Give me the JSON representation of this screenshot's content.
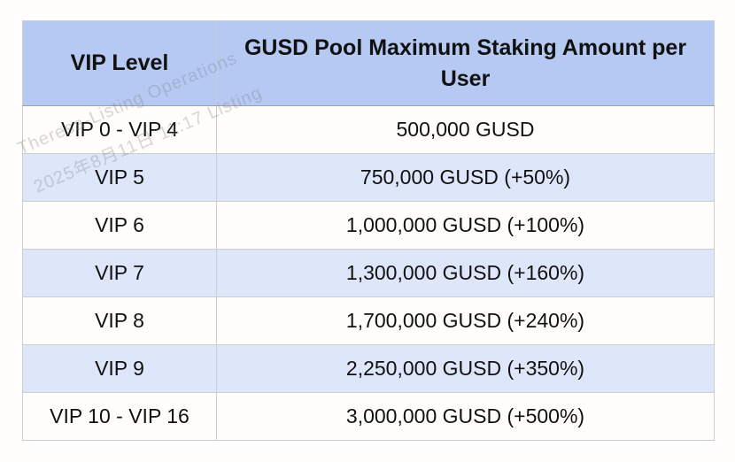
{
  "table": {
    "columns": [
      "VIP Level",
      "GUSD Pool Maximum Staking Amount per User"
    ],
    "rows": [
      {
        "level": "VIP 0 - VIP 4",
        "amount": "500,000 GUSD"
      },
      {
        "level": "VIP 5",
        "amount": "750,000 GUSD (+50%)"
      },
      {
        "level": "VIP 6",
        "amount": "1,000,000 GUSD (+100%)"
      },
      {
        "level": "VIP 7",
        "amount": "1,300,000 GUSD (+160%)"
      },
      {
        "level": "VIP 8",
        "amount": "1,700,000 GUSD (+240%)"
      },
      {
        "level": "VIP 9",
        "amount": "2,250,000 GUSD (+350%)"
      },
      {
        "level": "VIP 10 - VIP 16",
        "amount": "3,000,000 GUSD (+500%)"
      }
    ]
  },
  "watermark": {
    "line1": "Theresa-Listing Operations",
    "line2": "2025年8月11日 11:17 Listing"
  },
  "colors": {
    "page_bg": "#fffefc",
    "header_bg": "#b6c9f2",
    "alt_row_bg": "#dde7f9",
    "row_bg": "#fffefa",
    "border": "#c9cdd4",
    "text": "#111111",
    "watermark_text": "#80808a"
  }
}
